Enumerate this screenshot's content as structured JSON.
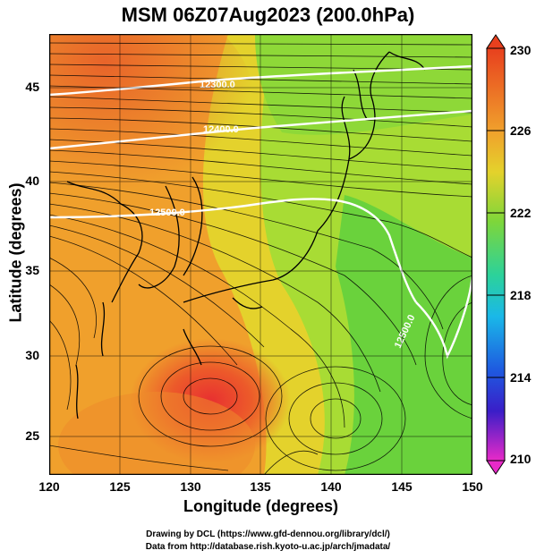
{
  "title": "MSM 06Z07Aug2023 (200.0hPa)",
  "map": {
    "xlabel": "Longitude (degrees)",
    "ylabel": "Latitude  (degrees)",
    "x_ticks": [
      "120",
      "125",
      "130",
      "135",
      "140",
      "145",
      "150"
    ],
    "y_ticks": [
      "45",
      "40",
      "35",
      "30",
      "25"
    ],
    "contour_labels": [
      "12300.0",
      "12400.0",
      "12500.0",
      "12500.0"
    ],
    "field": "temperature",
    "colors": {
      "hot": "#e8501e",
      "orange": "#f08a2a",
      "yellow": "#e6d22a",
      "green": "#7ed63a",
      "contour": "#ffffff",
      "streamline": "#000000"
    }
  },
  "colorbar": {
    "labels": [
      "230",
      "226",
      "222",
      "218",
      "214",
      "210"
    ]
  },
  "credits": {
    "line1": "Drawing by DCL (https://www.gfd-dennou.org/library/dcl/)",
    "line2": "Data from http://database.rish.kyoto-u.ac.jp/arch/jmadata/"
  }
}
